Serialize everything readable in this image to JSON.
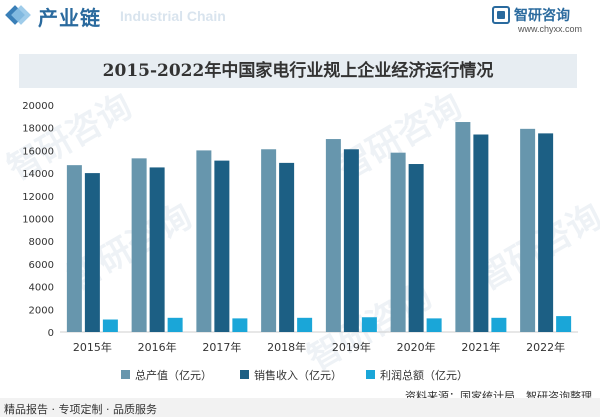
{
  "header": {
    "title": "产业链",
    "watermark": "Industrial Chain"
  },
  "brand": {
    "name": "智研咨询",
    "url": "www.chyxx.com"
  },
  "watermark_text": "智研咨询",
  "source": "资料来源：国家统计局、智研咨询整理",
  "footer": "精品报告 · 专项定制 · 品质服务",
  "colors": {
    "series1": "#6796ad",
    "series2": "#1c5f84",
    "series3": "#1aa6d8",
    "header_accent": "#2a6a9e",
    "title_bg": "#e7edf2"
  },
  "chart_data": {
    "type": "bar",
    "title": "2015-2022年中国家电行业规上企业经济运行情况",
    "categories": [
      "2015年",
      "2016年",
      "2017年",
      "2018年",
      "2019年",
      "2020年",
      "2021年",
      "2022年"
    ],
    "series": [
      {
        "name": "总产值（亿元）",
        "values": [
          14700,
          15300,
          16000,
          16100,
          17000,
          15800,
          18500,
          17900
        ]
      },
      {
        "name": "销售收入（亿元）",
        "values": [
          14000,
          14500,
          15100,
          14900,
          16100,
          14800,
          17400,
          17500
        ]
      },
      {
        "name": "利润总额（亿元）",
        "values": [
          1100,
          1250,
          1200,
          1250,
          1300,
          1200,
          1250,
          1400
        ]
      }
    ],
    "yticks": [
      "0",
      "2000",
      "4000",
      "6000",
      "8000",
      "10000",
      "12000",
      "14000",
      "16000",
      "18000",
      "20000"
    ],
    "ylim": [
      0,
      20000
    ],
    "grid": false,
    "legend_position": "bottom"
  }
}
